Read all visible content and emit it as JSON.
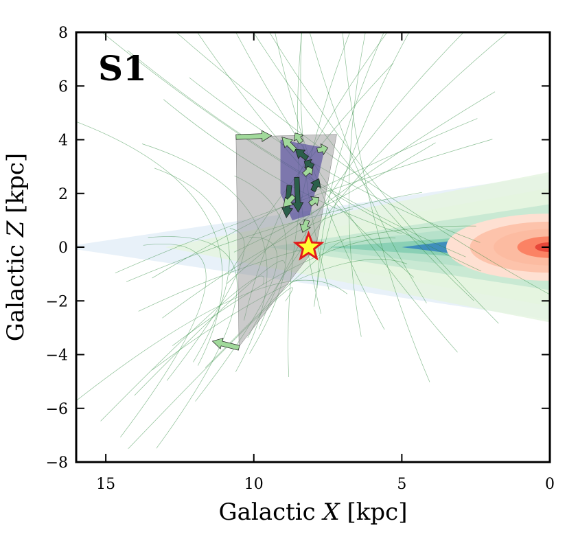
{
  "chart_data": {
    "type": "scatter",
    "panel_label": "S1",
    "xlabel": "Galactic X [kpc]",
    "ylabel": "Galactic Z [kpc]",
    "xlabel_prefix": "Galactic ",
    "xlabel_var": "X",
    "xlabel_unit": " [kpc]",
    "ylabel_prefix": "Galactic ",
    "ylabel_var": "Z",
    "ylabel_unit": " [kpc]",
    "xlim": [
      16,
      0
    ],
    "ylim": [
      -8,
      8
    ],
    "x_reversed": true,
    "grid": false,
    "xticks": [
      15,
      10,
      5,
      0
    ],
    "yticks": [
      8,
      6,
      4,
      2,
      0,
      -2,
      -4,
      -6,
      -8
    ],
    "xtick_labels": [
      "15",
      "10",
      "5",
      "0"
    ],
    "ytick_labels": [
      "8",
      "6",
      "4",
      "2",
      "0",
      "−2",
      "−4",
      "−6",
      "−8"
    ],
    "sun_position": {
      "x": 8.15,
      "z": 0.0
    },
    "colors": {
      "disk_outer": "#deebf7",
      "disk_green_light": "#e5f5e0",
      "disk_green_mid": "#b2dfc8",
      "disk_green_dark": "#66c2a4",
      "bar_blue": "#3182bd",
      "bulge_outer": "#fee0d2",
      "bulge_mid": "#fcbba1",
      "bulge_inner": "#fb6a4a",
      "bulge_core": "#de2d26",
      "gray_region": "#8c8c8c",
      "purple_region": "#4a3f9a",
      "orbit_line": "#2e8b3e",
      "arrow_fill": "#a1d99b",
      "arrow_dark": "#2b5f4a",
      "star_fill": "#ffff33",
      "star_edge": "#e31a1c"
    },
    "gray_region": [
      [
        10.6,
        4.1
      ],
      [
        7.2,
        4.2
      ],
      [
        7.9,
        0.0
      ],
      [
        10.5,
        -3.7
      ]
    ],
    "purple_region": [
      [
        9.1,
        4.0
      ],
      [
        7.6,
        3.7
      ],
      [
        8.1,
        1.2
      ],
      [
        8.7,
        1.0
      ],
      [
        9.1,
        2.0
      ]
    ],
    "arrows": [
      {
        "x": 10.6,
        "z": 4.1,
        "dx": -1.2,
        "dz": 0.05,
        "shade": "light"
      },
      {
        "x": 10.5,
        "z": -3.75,
        "dx": 0.9,
        "dz": 0.25,
        "shade": "light"
      },
      {
        "x": 8.8,
        "z": 2.3,
        "dx": 0.1,
        "dz": -1.2,
        "shade": "dark"
      },
      {
        "x": 8.55,
        "z": 2.6,
        "dx": -0.05,
        "dz": -1.3,
        "shade": "dark"
      },
      {
        "x": 8.6,
        "z": 3.6,
        "dx": 0.45,
        "dz": 0.5,
        "shade": "light"
      },
      {
        "x": 8.2,
        "z": 3.3,
        "dx": 0.4,
        "dz": 0.35,
        "shade": "dark"
      },
      {
        "x": 7.85,
        "z": 3.6,
        "dx": -0.35,
        "dz": 0.1,
        "shade": "light"
      },
      {
        "x": 8.3,
        "z": 2.7,
        "dx": -0.3,
        "dz": 0.3,
        "shade": "light"
      },
      {
        "x": 8.0,
        "z": 2.1,
        "dx": -0.2,
        "dz": 0.45,
        "shade": "dark"
      },
      {
        "x": 8.65,
        "z": 1.9,
        "dx": 0.35,
        "dz": -0.4,
        "shade": "light"
      },
      {
        "x": 8.2,
        "z": 1.0,
        "dx": 0.15,
        "dz": -0.45,
        "shade": "light"
      },
      {
        "x": 8.0,
        "z": 3.0,
        "dx": 0.3,
        "dz": 0.2,
        "shade": "dark"
      },
      {
        "x": 8.4,
        "z": 3.9,
        "dx": 0.2,
        "dz": 0.35,
        "shade": "light"
      },
      {
        "x": 8.1,
        "z": 1.6,
        "dx": -0.3,
        "dz": 0.25,
        "shade": "light"
      }
    ]
  }
}
